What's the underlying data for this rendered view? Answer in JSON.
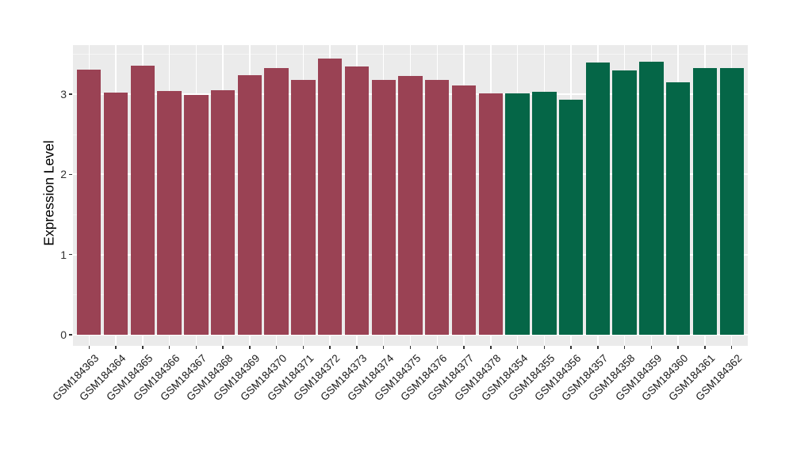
{
  "figure": {
    "background": "#FFFFFF",
    "panel_background": "#EBEBEB",
    "grid_major_color": "#FFFFFF",
    "grid_minor_color": "#F6F6F6",
    "axis_text_color": "#303030",
    "axis_title_color": "#000000"
  },
  "chart_data": {
    "type": "bar",
    "title": "",
    "xlabel": "",
    "ylabel": "Expression Level",
    "legend": "none",
    "grid": "major+minor",
    "ylim": [
      0,
      3.6
    ],
    "yticks": [
      0,
      1,
      2,
      3
    ],
    "yticks_minor": [
      0.5,
      1.5,
      2.5,
      3.5
    ],
    "categories": [
      "GSM184363",
      "GSM184364",
      "GSM184365",
      "GSM184366",
      "GSM184367",
      "GSM184368",
      "GSM184369",
      "GSM184370",
      "GSM184371",
      "GSM184372",
      "GSM184373",
      "GSM184374",
      "GSM184375",
      "GSM184376",
      "GSM184377",
      "GSM184378",
      "GSM184354",
      "GSM184355",
      "GSM184356",
      "GSM184357",
      "GSM184358",
      "GSM184359",
      "GSM184360",
      "GSM184361",
      "GSM184362"
    ],
    "values": [
      3.31,
      3.02,
      3.36,
      3.04,
      2.99,
      3.05,
      3.24,
      3.33,
      3.18,
      3.45,
      3.35,
      3.18,
      3.23,
      3.18,
      3.11,
      3.01,
      3.01,
      3.03,
      2.93,
      3.4,
      3.3,
      3.41,
      3.15,
      3.33,
      3.33
    ],
    "bar_colors": [
      "#9A4254",
      "#9A4254",
      "#9A4254",
      "#9A4254",
      "#9A4254",
      "#9A4254",
      "#9A4254",
      "#9A4254",
      "#9A4254",
      "#9A4254",
      "#9A4254",
      "#9A4254",
      "#9A4254",
      "#9A4254",
      "#9A4254",
      "#9A4254",
      "#056647",
      "#056647",
      "#056647",
      "#056647",
      "#056647",
      "#056647",
      "#056647",
      "#056647",
      "#056647"
    ]
  }
}
